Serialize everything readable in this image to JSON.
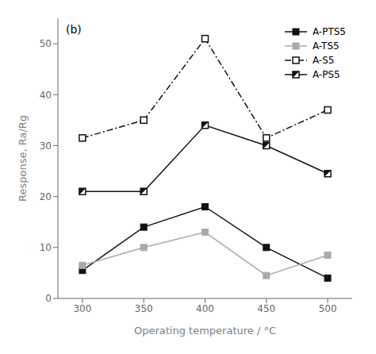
{
  "chart_data": {
    "type": "line",
    "x": [
      300,
      350,
      400,
      450,
      500
    ],
    "series": [
      {
        "name": "A-PTS5",
        "color": "#111111",
        "values": [
          5.5,
          14.0,
          18.0,
          10.0,
          4.0
        ],
        "marker": "square",
        "line_style": "solid"
      },
      {
        "name": "A-TS5",
        "color": "#aaaaaa",
        "values": [
          6.5,
          10.0,
          13.0,
          4.5,
          8.5
        ],
        "marker": "square",
        "line_style": "solid"
      },
      {
        "name": "A-S5",
        "color": "#111111",
        "values": [
          31.5,
          35.0,
          51.0,
          31.5,
          37.0
        ],
        "marker": "square_open",
        "line_style": "dashdot"
      },
      {
        "name": "A-PS5",
        "color": "#111111",
        "values": [
          21.0,
          21.0,
          34.0,
          30.0,
          24.5
        ],
        "marker": "square_half",
        "line_style": "solid"
      }
    ],
    "xlabel": "Operating temperature / °C",
    "ylabel": "Response, Ra/Rg",
    "annotation": "(b)",
    "xlim": [
      280,
      520
    ],
    "ylim": [
      0,
      55
    ],
    "xticks": [
      300,
      350,
      400,
      450,
      500
    ],
    "yticks": [
      0,
      10,
      20,
      30,
      40,
      50
    ],
    "legend": "upper right",
    "grid": false
  }
}
